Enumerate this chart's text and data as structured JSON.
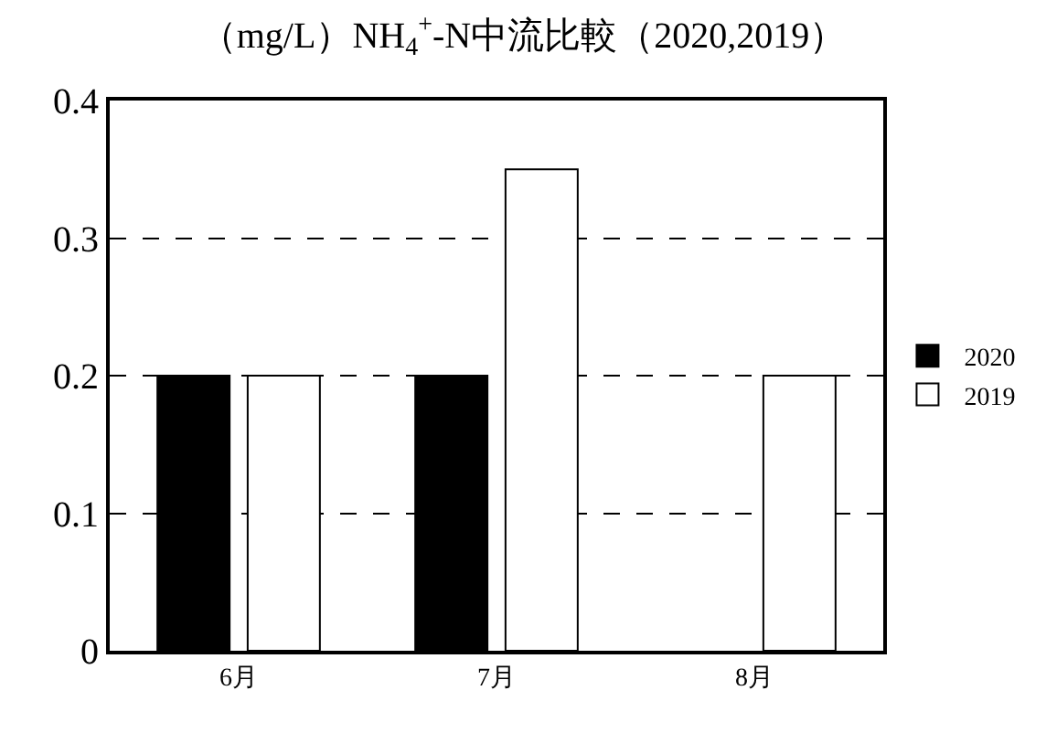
{
  "chart_data": {
    "type": "bar",
    "title": "（mg/L）NH$_{4}$$^{+}$-N中流比較（2020,2019）",
    "categories": [
      "6月",
      "7月",
      "8月"
    ],
    "series": [
      {
        "name": "2020",
        "color": "#000000",
        "values": [
          0.2,
          0.2,
          null
        ]
      },
      {
        "name": "2019",
        "color": "#ffffff",
        "values": [
          0.2,
          0.35,
          0.2
        ]
      }
    ],
    "ylim": [
      0,
      0.4
    ],
    "yticks": [
      0,
      0.1,
      0.2,
      0.3,
      0.4
    ],
    "grid": "y",
    "legend": "right"
  }
}
